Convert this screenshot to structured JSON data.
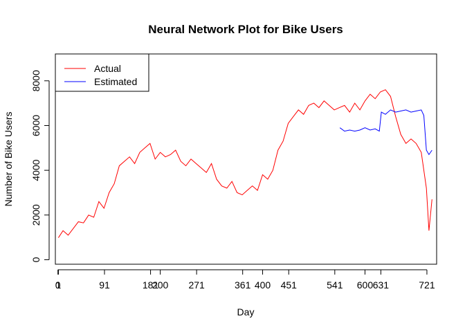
{
  "chart_data": {
    "type": "line",
    "title": "Neural Network Plot for Bike Users",
    "xlabel": "Day",
    "ylabel": "Number of Bike Users",
    "xlim": [
      -5,
      740
    ],
    "ylim": [
      -200,
      9200
    ],
    "x_ticks": [
      0,
      1,
      91,
      181,
      200,
      271,
      361,
      400,
      451,
      541,
      600,
      631,
      721
    ],
    "y_ticks": [
      0,
      2000,
      4000,
      6000,
      8000
    ],
    "grid": false,
    "legend_position": "top-left",
    "series": [
      {
        "name": "Actual",
        "color": "#ff0000",
        "x": [
          1,
          10,
          20,
          30,
          40,
          50,
          60,
          70,
          80,
          90,
          100,
          110,
          120,
          130,
          140,
          150,
          160,
          170,
          180,
          190,
          200,
          210,
          220,
          230,
          240,
          250,
          260,
          270,
          280,
          290,
          300,
          310,
          320,
          330,
          340,
          350,
          360,
          370,
          380,
          390,
          400,
          410,
          420,
          430,
          440,
          450,
          460,
          470,
          480,
          490,
          500,
          510,
          520,
          530,
          540,
          550,
          560,
          570,
          580,
          590,
          600,
          610,
          620,
          630,
          640,
          650,
          660,
          670,
          680,
          690,
          700,
          710,
          720,
          725,
          731
        ],
        "y": [
          985,
          1300,
          1100,
          1400,
          1700,
          1650,
          2000,
          1900,
          2600,
          2300,
          3000,
          3400,
          4200,
          4400,
          4600,
          4300,
          4800,
          5000,
          5200,
          4500,
          4800,
          4600,
          4700,
          4900,
          4400,
          4200,
          4500,
          4300,
          4100,
          3900,
          4300,
          3600,
          3300,
          3200,
          3500,
          3000,
          2900,
          3100,
          3300,
          3100,
          3800,
          3600,
          4000,
          4900,
          5300,
          6100,
          6400,
          6700,
          6500,
          6900,
          7000,
          6800,
          7100,
          6900,
          6700,
          6800,
          6900,
          6600,
          7000,
          6700,
          7100,
          7400,
          7200,
          7500,
          7600,
          7300,
          6400,
          5600,
          5200,
          5400,
          5200,
          4800,
          3200,
          1300,
          2700
        ]
      },
      {
        "name": "Estimated",
        "color": "#0000ff",
        "x": [
          551,
          560,
          570,
          580,
          590,
          600,
          610,
          620,
          628,
          632,
          640,
          650,
          660,
          670,
          680,
          690,
          700,
          710,
          715,
          720,
          725,
          731
        ],
        "y": [
          5900,
          5750,
          5800,
          5750,
          5800,
          5900,
          5800,
          5850,
          5750,
          6600,
          6500,
          6700,
          6600,
          6650,
          6700,
          6600,
          6650,
          6700,
          6450,
          4900,
          4700,
          4900
        ]
      }
    ]
  }
}
